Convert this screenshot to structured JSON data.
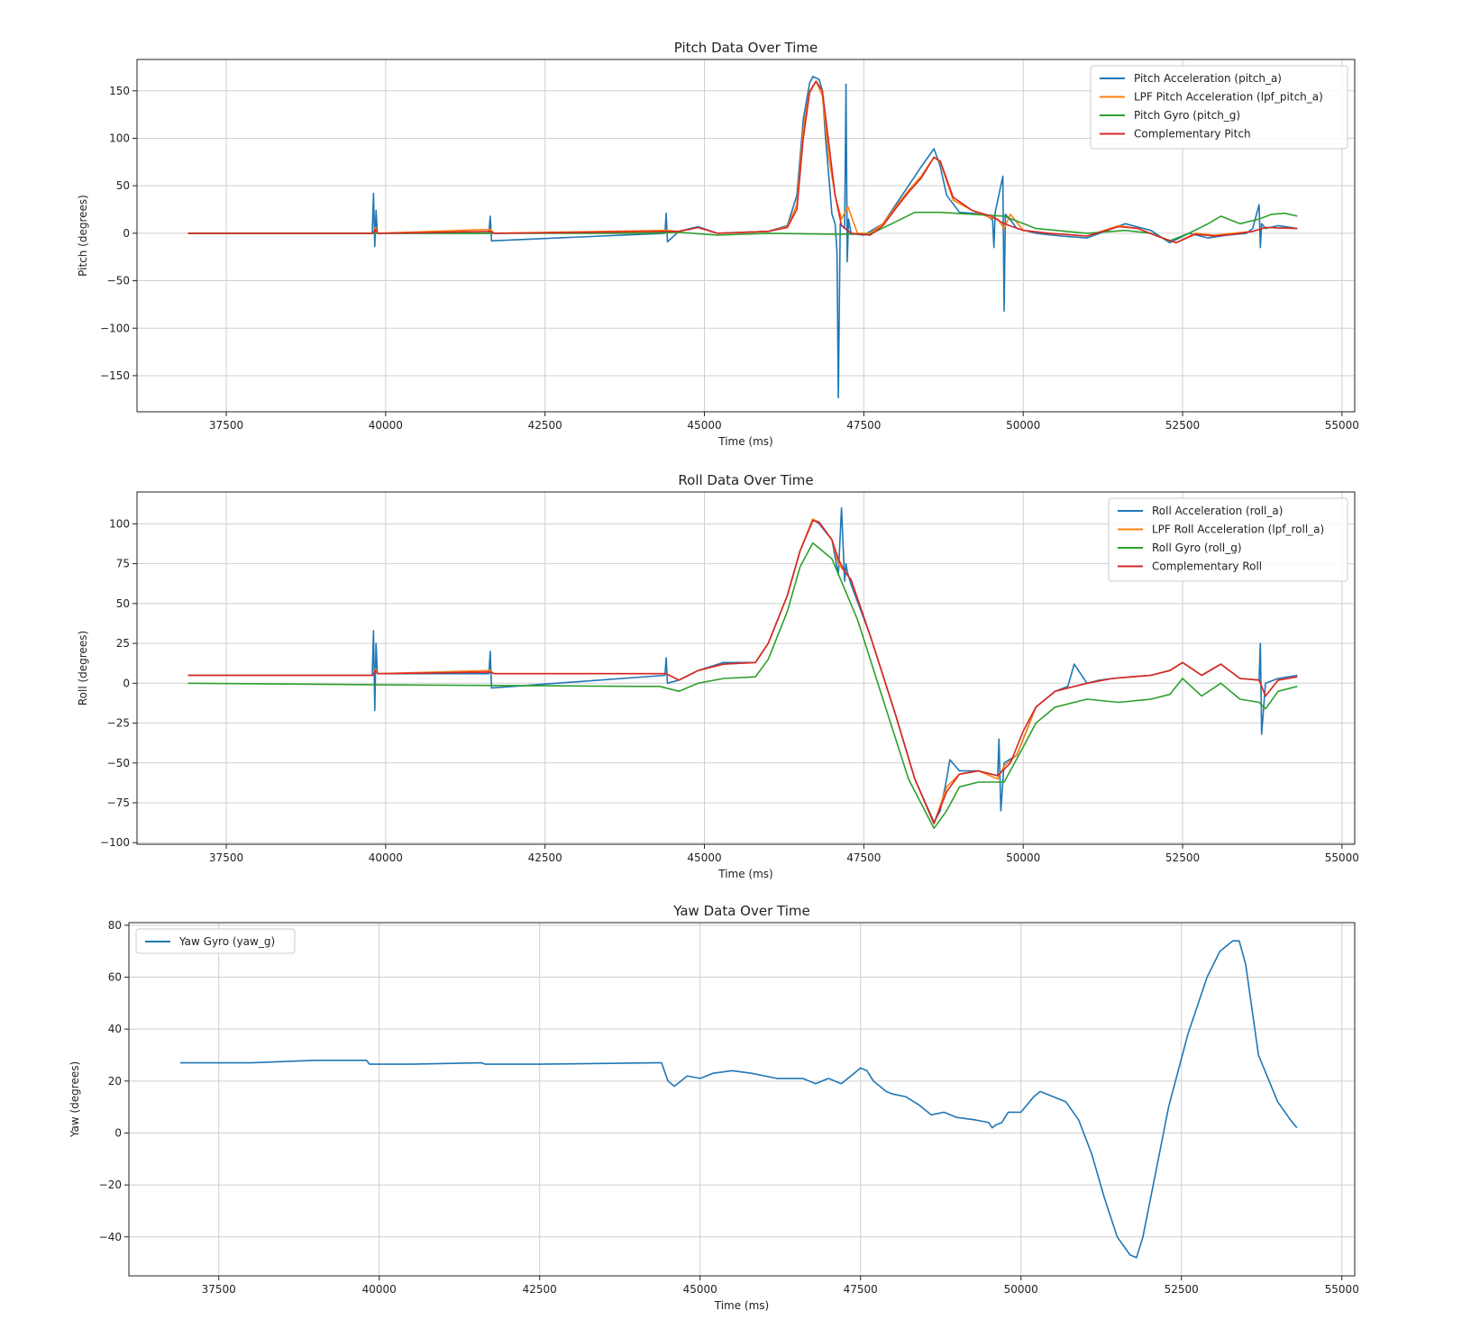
{
  "chart_data": [
    {
      "type": "line",
      "title": "Pitch Data Over Time",
      "xlabel": "Time (ms)",
      "ylabel": "Pitch (degrees)",
      "xlim": [
        36100,
        55200
      ],
      "ylim": [
        -188,
        183
      ],
      "xticks": [
        37500,
        40000,
        42500,
        45000,
        47500,
        50000,
        52500,
        55000
      ],
      "xtick_labels": [
        "37500",
        "40000",
        "42500",
        "45000",
        "47500",
        "50000",
        "52500",
        "55000"
      ],
      "yticks": [
        150,
        100,
        50,
        0,
        -50,
        -100,
        -150
      ],
      "ytick_labels": [
        "150",
        "100",
        "50",
        "0",
        "−50",
        "−100",
        "−150"
      ],
      "grid": true,
      "legend_position": "top-right",
      "series": [
        {
          "name": "Pitch Acceleration (pitch_a)",
          "color": "#1f77b4",
          "x": [
            36900,
            39790,
            39810,
            39830,
            39850,
            39870,
            41620,
            41640,
            41660,
            44380,
            44400,
            44420,
            44600,
            44900,
            45200,
            46000,
            46300,
            46450,
            46550,
            46650,
            46700,
            46800,
            46850,
            46900,
            46950,
            47000,
            47050,
            47080,
            47100,
            47130,
            47200,
            47220,
            47240,
            47260,
            47300,
            47500,
            47800,
            48000,
            48200,
            48400,
            48600,
            48650,
            48700,
            48800,
            49000,
            49400,
            49520,
            49540,
            49560,
            49680,
            49700,
            49720,
            49800,
            49900,
            50200,
            50600,
            51000,
            51400,
            51600,
            52000,
            52300,
            52600,
            52900,
            53200,
            53500,
            53600,
            53700,
            53720,
            53740,
            53800,
            54000,
            54300
          ],
          "y": [
            0,
            0,
            42,
            -14,
            24,
            0,
            0,
            18,
            -8,
            0,
            21,
            -9,
            2,
            7,
            0,
            2,
            8,
            40,
            120,
            158,
            165,
            162,
            150,
            100,
            60,
            20,
            10,
            -20,
            -173,
            10,
            5,
            157,
            -30,
            15,
            0,
            -2,
            10,
            30,
            50,
            70,
            89,
            80,
            70,
            40,
            22,
            20,
            14,
            -15,
            22,
            60,
            -82,
            20,
            14,
            5,
            0,
            -3,
            -5,
            5,
            10,
            3,
            -10,
            0,
            -5,
            -2,
            0,
            5,
            30,
            -15,
            10,
            5,
            8,
            5
          ]
        },
        {
          "name": "LPF Pitch Acceleration (lpf_pitch_a)",
          "color": "#ff7f0e",
          "x": [
            36900,
            39800,
            39840,
            39880,
            41640,
            41700,
            44400,
            44600,
            44900,
            45200,
            46000,
            46300,
            46450,
            46550,
            46650,
            46750,
            46850,
            46950,
            47050,
            47150,
            47250,
            47400,
            47600,
            47800,
            48000,
            48200,
            48400,
            48600,
            48700,
            48900,
            49200,
            49500,
            49600,
            49700,
            49800,
            50000,
            50400,
            51000,
            51500,
            51800,
            52100,
            52400,
            52700,
            53000,
            53300,
            53600,
            53800,
            54300
          ],
          "y": [
            0,
            0,
            6,
            0,
            4,
            0,
            3,
            2,
            6,
            0,
            2,
            7,
            30,
            110,
            150,
            160,
            145,
            80,
            40,
            15,
            28,
            0,
            0,
            10,
            28,
            45,
            60,
            80,
            75,
            35,
            24,
            16,
            15,
            5,
            20,
            3,
            0,
            -3,
            8,
            5,
            -3,
            -10,
            0,
            -2,
            0,
            2,
            6,
            5
          ]
        },
        {
          "name": "Pitch Gyro (pitch_g)",
          "color": "#2ca02c",
          "x": [
            36900,
            44000,
            44600,
            45200,
            46000,
            47000,
            47600,
            48000,
            48300,
            48700,
            49200,
            49700,
            50200,
            51000,
            51600,
            52000,
            52300,
            52600,
            52900,
            53100,
            53400,
            53700,
            53900,
            54100,
            54300
          ],
          "y": [
            0,
            0,
            1,
            -2,
            0,
            -1,
            -1,
            12,
            22,
            22,
            20,
            18,
            5,
            0,
            3,
            0,
            -8,
            0,
            10,
            18,
            10,
            15,
            20,
            21,
            18
          ]
        },
        {
          "name": "Complementary Pitch",
          "color": "#d62728",
          "x": [
            36900,
            39800,
            39840,
            39880,
            41640,
            41700,
            44400,
            44600,
            44900,
            45200,
            46000,
            46300,
            46450,
            46550,
            46650,
            46750,
            46850,
            46950,
            47050,
            47150,
            47300,
            47600,
            47800,
            48000,
            48200,
            48400,
            48600,
            48700,
            48900,
            49200,
            49500,
            49700,
            50000,
            50400,
            51000,
            51500,
            51800,
            52100,
            52400,
            52700,
            53000,
            53300,
            53600,
            53800,
            54300
          ],
          "y": [
            0,
            0,
            4,
            0,
            2,
            0,
            2,
            2,
            6,
            0,
            2,
            6,
            25,
            100,
            148,
            160,
            150,
            95,
            40,
            8,
            0,
            -2,
            8,
            26,
            43,
            58,
            80,
            76,
            38,
            24,
            18,
            10,
            3,
            0,
            -3,
            7,
            5,
            -3,
            -10,
            -1,
            -3,
            -1,
            2,
            6,
            5
          ]
        }
      ]
    },
    {
      "type": "line",
      "title": "Roll Data Over Time",
      "xlabel": "Time (ms)",
      "ylabel": "Roll (degrees)",
      "xlim": [
        36100,
        55200
      ],
      "ylim": [
        -101,
        120
      ],
      "xticks": [
        37500,
        40000,
        42500,
        45000,
        47500,
        50000,
        52500,
        55000
      ],
      "xtick_labels": [
        "37500",
        "40000",
        "42500",
        "45000",
        "47500",
        "50000",
        "52500",
        "55000"
      ],
      "yticks": [
        100,
        75,
        50,
        25,
        0,
        -25,
        -50,
        -75,
        -100
      ],
      "ytick_labels": [
        "100",
        "75",
        "50",
        "25",
        "0",
        "−25",
        "−50",
        "−75",
        "−100"
      ],
      "grid": true,
      "legend_position": "top-right",
      "series": [
        {
          "name": "Roll Acceleration (roll_a)",
          "color": "#1f77b4",
          "x": [
            36900,
            39790,
            39810,
            39830,
            39850,
            39870,
            41620,
            41640,
            41660,
            44380,
            44400,
            44420,
            44600,
            44900,
            45300,
            45800,
            46000,
            46300,
            46500,
            46700,
            46800,
            47000,
            47100,
            47150,
            47200,
            47220,
            47240,
            47300,
            47600,
            48000,
            48300,
            48600,
            48700,
            48800,
            48850,
            49000,
            49300,
            49600,
            49620,
            49650,
            49700,
            49900,
            50200,
            50500,
            50700,
            50800,
            51000,
            51200,
            51400,
            51700,
            52000,
            52300,
            52500,
            52800,
            53100,
            53400,
            53700,
            53720,
            53740,
            53800,
            54000,
            54300
          ],
          "y": [
            5,
            5,
            33,
            -17,
            25,
            6,
            6,
            20,
            -3,
            5,
            16,
            0,
            2,
            8,
            13,
            13,
            25,
            55,
            83,
            103,
            100,
            90,
            68,
            110,
            64,
            75,
            70,
            62,
            30,
            -20,
            -60,
            -87,
            -80,
            -60,
            -48,
            -55,
            -55,
            -58,
            -35,
            -80,
            -50,
            -45,
            -15,
            -5,
            -2,
            12,
            0,
            2,
            3,
            4,
            5,
            8,
            13,
            5,
            12,
            3,
            2,
            25,
            -32,
            0,
            3,
            5
          ]
        },
        {
          "name": "LPF Roll Acceleration (lpf_roll_a)",
          "color": "#ff7f0e",
          "x": [
            36900,
            39800,
            39840,
            39880,
            41640,
            41700,
            44400,
            44600,
            44900,
            45300,
            45800,
            46000,
            46300,
            46500,
            46700,
            46800,
            47000,
            47100,
            47200,
            47300,
            47600,
            48000,
            48300,
            48600,
            48800,
            49000,
            49300,
            49600,
            49700,
            49900,
            50200,
            50500,
            51000,
            51400,
            51700,
            52000,
            52300,
            52500,
            52800,
            53100,
            53400,
            53700,
            53800,
            54000,
            54300
          ],
          "y": [
            5,
            5,
            9,
            6,
            8,
            6,
            6,
            2,
            8,
            12,
            13,
            25,
            55,
            83,
            103,
            101,
            90,
            75,
            70,
            65,
            30,
            -20,
            -60,
            -88,
            -65,
            -57,
            -55,
            -60,
            -52,
            -45,
            -15,
            -5,
            0,
            3,
            4,
            5,
            8,
            13,
            5,
            12,
            3,
            2,
            -8,
            2,
            4
          ]
        },
        {
          "name": "Roll Gyro (roll_g)",
          "color": "#2ca02c",
          "x": [
            36900,
            40000,
            44000,
            44300,
            44600,
            44900,
            45300,
            45800,
            46000,
            46300,
            46500,
            46700,
            47000,
            47400,
            47800,
            48200,
            48600,
            48800,
            49000,
            49300,
            49700,
            50000,
            50200,
            50500,
            51000,
            51500,
            52000,
            52300,
            52500,
            52800,
            53100,
            53400,
            53700,
            53800,
            54000,
            54300
          ],
          "y": [
            0,
            -1,
            -2,
            -2,
            -5,
            0,
            3,
            4,
            15,
            45,
            73,
            88,
            78,
            40,
            -10,
            -60,
            -91,
            -80,
            -65,
            -62,
            -62,
            -40,
            -25,
            -15,
            -10,
            -12,
            -10,
            -7,
            3,
            -8,
            0,
            -10,
            -12,
            -16,
            -5,
            -2
          ]
        },
        {
          "name": "Complementary Roll",
          "color": "#d62728",
          "x": [
            36900,
            39800,
            39840,
            39880,
            41640,
            41700,
            44400,
            44600,
            44900,
            45300,
            45800,
            46000,
            46300,
            46500,
            46700,
            46800,
            47000,
            47100,
            47200,
            47300,
            47600,
            48000,
            48300,
            48600,
            48800,
            49000,
            49300,
            49600,
            49800,
            50000,
            50200,
            50500,
            51000,
            51400,
            51700,
            52000,
            52300,
            52500,
            52800,
            53100,
            53400,
            53700,
            53800,
            54000,
            54300
          ],
          "y": [
            5,
            5,
            8,
            6,
            7,
            6,
            6,
            2,
            8,
            12,
            13,
            25,
            55,
            83,
            102,
            101,
            90,
            78,
            70,
            65,
            30,
            -20,
            -60,
            -88,
            -68,
            -57,
            -55,
            -58,
            -50,
            -30,
            -15,
            -5,
            0,
            3,
            4,
            5,
            8,
            13,
            5,
            12,
            3,
            2,
            -8,
            2,
            4
          ]
        }
      ]
    },
    {
      "type": "line",
      "title": "Yaw Data Over Time",
      "xlabel": "Time (ms)",
      "ylabel": "Yaw (degrees)",
      "xlim": [
        36100,
        55200
      ],
      "ylim": [
        -55,
        81
      ],
      "xticks": [
        37500,
        40000,
        42500,
        45000,
        47500,
        50000,
        52500,
        55000
      ],
      "xtick_labels": [
        "37500",
        "40000",
        "42500",
        "45000",
        "47500",
        "50000",
        "52500",
        "55000"
      ],
      "yticks": [
        80,
        60,
        40,
        20,
        0,
        -20,
        -40
      ],
      "ytick_labels": [
        "80",
        "60",
        "40",
        "20",
        "0",
        "−20",
        "−40"
      ],
      "grid": true,
      "legend_position": "top-left",
      "series": [
        {
          "name": "Yaw Gyro (yaw_g)",
          "color": "#1f77b4",
          "x": [
            36900,
            38000,
            39000,
            39800,
            39850,
            40500,
            41600,
            41650,
            42500,
            44300,
            44400,
            44500,
            44600,
            44800,
            45000,
            45200,
            45500,
            45800,
            46200,
            46600,
            46800,
            47000,
            47200,
            47400,
            47500,
            47600,
            47700,
            47900,
            48000,
            48200,
            48400,
            48600,
            48800,
            49000,
            49300,
            49500,
            49550,
            49600,
            49700,
            49800,
            50000,
            50200,
            50300,
            50500,
            50700,
            50900,
            51100,
            51300,
            51500,
            51700,
            51800,
            51900,
            52100,
            52300,
            52600,
            52900,
            53100,
            53300,
            53400,
            53500,
            53700,
            54000,
            54200,
            54300
          ],
          "y": [
            27,
            27,
            28,
            28,
            26.5,
            26.5,
            27,
            26.5,
            26.5,
            27,
            27,
            20,
            18,
            22,
            21,
            23,
            24,
            23,
            21,
            21,
            19,
            21,
            19,
            23,
            25,
            24,
            20,
            16,
            15,
            14,
            11,
            7,
            8,
            6,
            5,
            4,
            2,
            3,
            4,
            8,
            8,
            14,
            16,
            14,
            12,
            5,
            -8,
            -25,
            -40,
            -47,
            -48,
            -40,
            -15,
            10,
            38,
            60,
            70,
            74,
            74,
            65,
            30,
            12,
            5,
            2
          ]
        }
      ]
    }
  ]
}
